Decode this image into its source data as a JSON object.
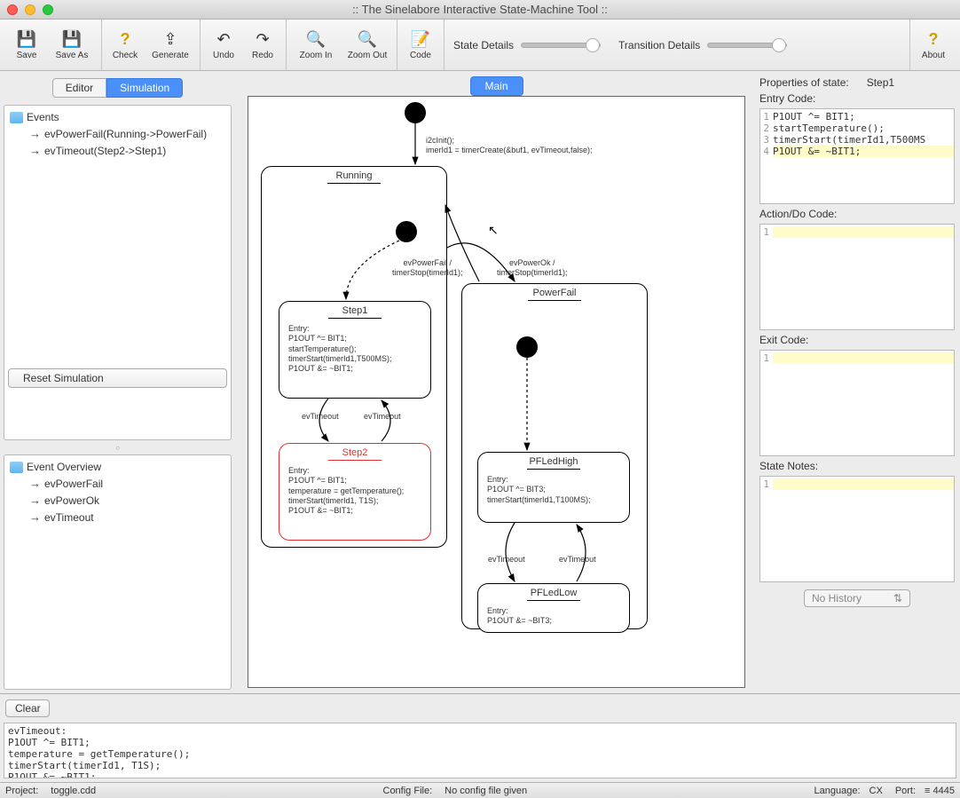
{
  "window": {
    "title": ":: The Sinelabore Interactive State-Machine Tool ::"
  },
  "toolbar": {
    "save": "Save",
    "saveas": "Save As",
    "check": "Check",
    "generate": "Generate",
    "undo": "Undo",
    "redo": "Redo",
    "zoomin": "Zoom In",
    "zoomout": "Zoom Out",
    "code": "Code",
    "statedetails": "State Details",
    "transdetails": "Transition Details",
    "about": "About"
  },
  "left": {
    "tab_editor": "Editor",
    "tab_simulation": "Simulation",
    "events_header": "Events",
    "events": [
      "evPowerFail(Running->PowerFail)",
      "evTimeout(Step2->Step1)"
    ],
    "reset": "Reset Simulation",
    "overview_header": "Event Overview",
    "overview": [
      "evPowerFail",
      "evPowerOk",
      "evTimeout"
    ]
  },
  "center": {
    "tab_main": "Main"
  },
  "diagram": {
    "init_label": "i2cInit();\nimerId1 = timerCreate(&buf1, evTimeout,false);",
    "running": {
      "title": "Running"
    },
    "powerfail": {
      "title": "PowerFail"
    },
    "step1": {
      "title": "Step1",
      "entry": "Entry:\nP1OUT ^= BIT1;\nstartTemperature();\ntimerStart(timerId1,T500MS);\nP1OUT &= ~BIT1;"
    },
    "step2": {
      "title": "Step2",
      "entry": "Entry:\nP1OUT ^= BIT1;\ntemperature = getTemperature();\ntimerStart(timerId1, T1S);\nP1OUT &= ~BIT1;"
    },
    "pfledhigh": {
      "title": "PFLedHigh",
      "entry": "Entry:\nP1OUT ^= BIT3;\ntimerStart(timerId1,T100MS);"
    },
    "pfledlow": {
      "title": "PFLedLow",
      "entry": "Entry:\nP1OUT &= ~BIT3;"
    },
    "t_evpowerfail": "evPowerFail /\ntimerStop(timerId1);",
    "t_evpowerok": "evPowerOk /\ntimerStop(timerId1);",
    "t_evtimeout_l": "evTimeout",
    "t_evtimeout_r": "evTimeout",
    "t_evtimeout_pfl": "evTimeout",
    "t_evtimeout_pfr": "evTimeout"
  },
  "props": {
    "header_label": "Properties of state:",
    "header_state": "Step1",
    "entry_label": "Entry Code:",
    "action_label": "Action/Do Code:",
    "exit_label": "Exit Code:",
    "notes_label": "State Notes:",
    "no_history": "No History",
    "entry_lines": [
      {
        "n": "1",
        "raw": "P1OUT ^= BIT1;"
      },
      {
        "n": "2",
        "raw": "startTemperature();"
      },
      {
        "n": "3",
        "raw": "timerStart(timerId1,T500MS"
      },
      {
        "n": "4",
        "raw": "P1OUT &= ~BIT1;"
      }
    ]
  },
  "log": {
    "clear": "Clear",
    "text": "evTimeout:\nP1OUT ^= BIT1;\ntemperature = getTemperature();\ntimerStart(timerId1, T1S);\nP1OUT &= ~BIT1;"
  },
  "status": {
    "project_lbl": "Project:",
    "project": "toggle.cdd",
    "config_lbl": "Config File:",
    "config": "No config file given",
    "lang_lbl": "Language:",
    "lang": "CX",
    "port_lbl": "Port:",
    "port": "≡ 4445"
  }
}
